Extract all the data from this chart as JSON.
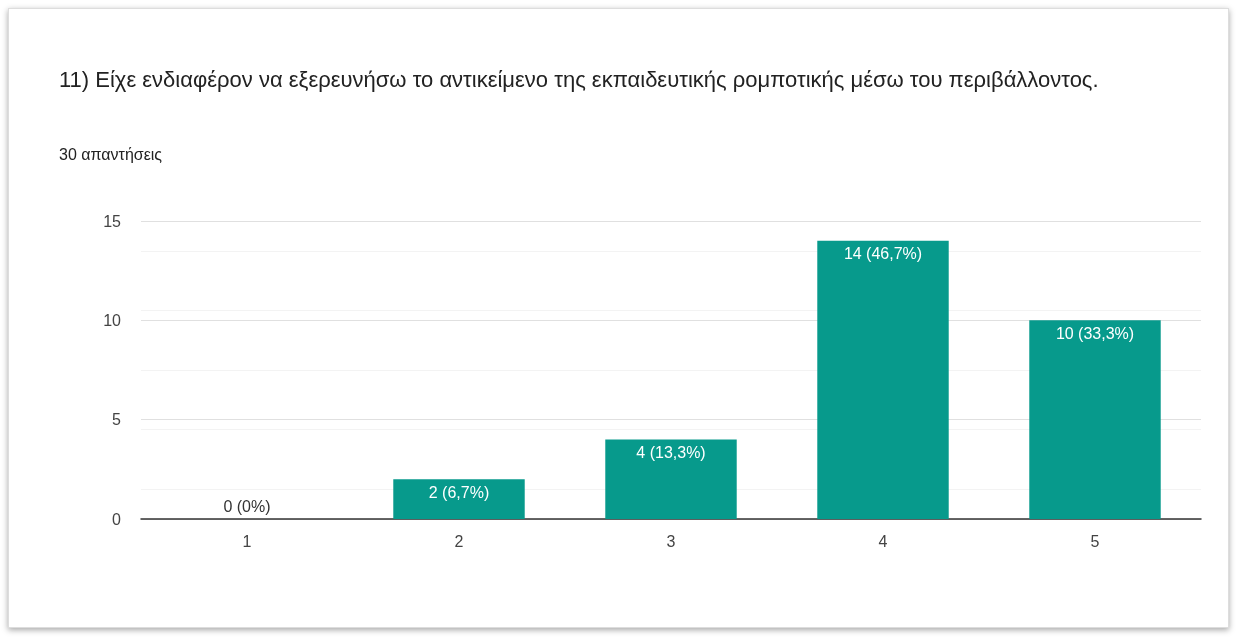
{
  "chart_data": {
    "type": "bar",
    "title": "11) Είχε ενδιαφέρον να εξερευνήσω το αντικείμενο της εκπαιδευτικής ρομποτικής μέσω του περιβάλλοντος.",
    "subtitle": "30 απαντήσεις",
    "categories": [
      "1",
      "2",
      "3",
      "4",
      "5"
    ],
    "values": [
      0,
      2,
      4,
      14,
      10
    ],
    "value_labels": [
      "0 (0%)",
      "2 (6,7%)",
      "4 (13,3%)",
      "14 (46,7%)",
      "10 (33,3%)"
    ],
    "color": "#079a8c",
    "ylim": [
      0,
      15
    ],
    "yticks": [
      0,
      5,
      10,
      15
    ],
    "grid": "y"
  }
}
